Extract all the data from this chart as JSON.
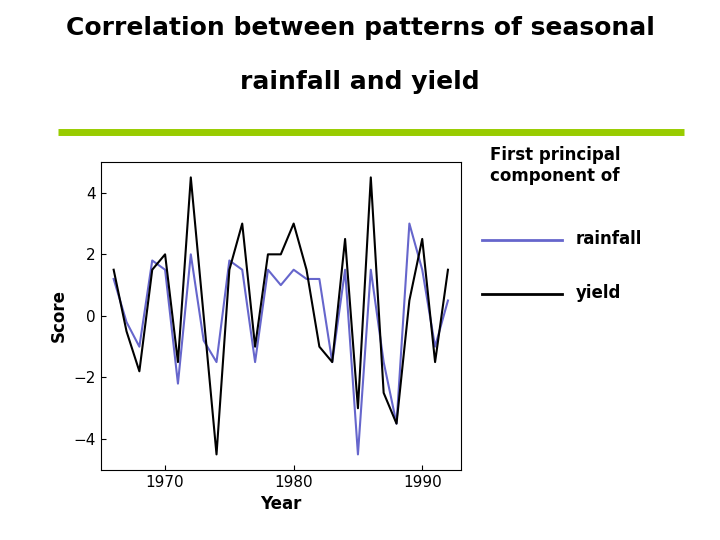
{
  "title_line1": "Correlation between patterns of seasonal",
  "title_line2": "rainfall and yield",
  "title_fontsize": 18,
  "xlabel": "Year",
  "ylabel": "Score",
  "xlim": [
    1965,
    1993
  ],
  "ylim": [
    -5,
    5
  ],
  "yticks": [
    -4,
    -2,
    0,
    2,
    4
  ],
  "xticks": [
    1970,
    1980,
    1990
  ],
  "rainfall_color": "#6666cc",
  "yield_color": "#000000",
  "background_color": "#ffffff",
  "separator_color": "#99cc00",
  "separator_linewidth": 5,
  "legend_title": "First principal\ncomponent of",
  "legend_rainfall": "rainfall",
  "legend_yield": "yield",
  "years": [
    1966,
    1967,
    1968,
    1969,
    1970,
    1971,
    1972,
    1973,
    1974,
    1975,
    1976,
    1977,
    1978,
    1979,
    1980,
    1981,
    1982,
    1983,
    1984,
    1985,
    1986,
    1987,
    1988,
    1989,
    1990,
    1991,
    1992
  ],
  "rainfall": [
    1.2,
    -0.2,
    -1.0,
    1.8,
    1.5,
    -2.2,
    2.0,
    -0.8,
    -1.5,
    1.8,
    1.5,
    -1.5,
    1.5,
    1.0,
    1.5,
    1.2,
    1.2,
    -1.5,
    1.5,
    -4.5,
    1.5,
    -1.5,
    -3.5,
    3.0,
    1.5,
    -1.0,
    0.5
  ],
  "yield_vals": [
    1.5,
    -0.5,
    -1.8,
    1.5,
    2.0,
    -1.5,
    4.5,
    0.0,
    -4.5,
    1.5,
    3.0,
    -1.0,
    2.0,
    2.0,
    3.0,
    1.5,
    -1.0,
    -1.5,
    2.5,
    -3.0,
    4.5,
    -2.5,
    -3.5,
    0.5,
    2.5,
    -1.5,
    1.5
  ]
}
